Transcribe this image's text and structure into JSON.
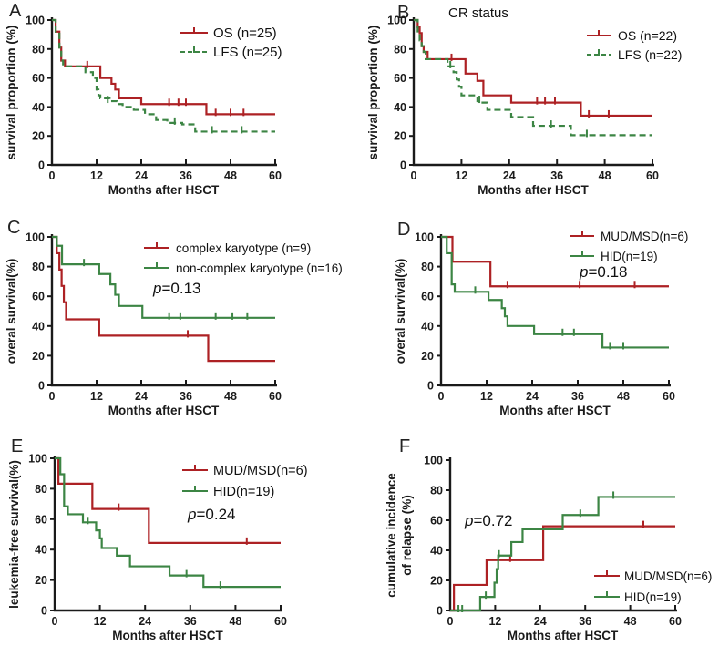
{
  "figure_title": "",
  "style": {
    "axis_color": "#1a1a1a",
    "os_red": "#ad2124",
    "lfs_green": "#3c8544",
    "text_color": "#1a1a1a"
  },
  "chart_data": [
    {
      "panel": "A",
      "type": "line",
      "subtype": "kaplan-meier-step",
      "title": "",
      "xlabel": "Months after HSCT",
      "ylabel": "survival proportion (%)",
      "xlim": [
        0,
        60
      ],
      "ylim": [
        0,
        100
      ],
      "xticks": [
        0,
        12,
        24,
        36,
        48,
        60
      ],
      "yticks": [
        0,
        20,
        40,
        60,
        80,
        100
      ],
      "grid": false,
      "legend_position": "top-right",
      "p_value": null,
      "series": [
        {
          "name": "OS (n=25)",
          "color": "#ad2124",
          "style": "solid",
          "steps": [
            [
              0,
              100
            ],
            [
              1,
              92
            ],
            [
              2,
              81
            ],
            [
              2.5,
              72
            ],
            [
              3.5,
              68
            ],
            [
              13,
              60
            ],
            [
              16,
              56
            ],
            [
              17,
              52
            ],
            [
              18,
              46
            ],
            [
              24,
              42
            ],
            [
              41.5,
              35
            ]
          ],
          "censors": [
            [
              9.5,
              68
            ],
            [
              31.5,
              42
            ],
            [
              34,
              42
            ],
            [
              36,
              42
            ],
            [
              44,
              35
            ],
            [
              48,
              35
            ],
            [
              51.5,
              35
            ]
          ]
        },
        {
          "name": "LFS (n=25)",
          "color": "#3c8544",
          "style": "dashed",
          "steps": [
            [
              0,
              100
            ],
            [
              1,
              92
            ],
            [
              2,
              81
            ],
            [
              2.5,
              72
            ],
            [
              3,
              68
            ],
            [
              9,
              64
            ],
            [
              11,
              60
            ],
            [
              12,
              52
            ],
            [
              12.5,
              48
            ],
            [
              13,
              46
            ],
            [
              15.5,
              44
            ],
            [
              17.5,
              42
            ],
            [
              19,
              40
            ],
            [
              22,
              38
            ],
            [
              25,
              35
            ],
            [
              28,
              31
            ],
            [
              31,
              29
            ],
            [
              35,
              28
            ],
            [
              38.5,
              23
            ]
          ],
          "censors": [
            [
              15,
              44
            ],
            [
              33,
              29
            ],
            [
              43,
              23
            ],
            [
              51,
              23
            ]
          ]
        }
      ]
    },
    {
      "panel": "B",
      "type": "line",
      "subtype": "kaplan-meier-step",
      "title": "CR status",
      "xlabel": "Months after HSCT",
      "ylabel": "survival proportion (%)",
      "xlim": [
        0,
        60
      ],
      "ylim": [
        0,
        100
      ],
      "xticks": [
        0,
        12,
        24,
        36,
        48,
        60
      ],
      "yticks": [
        0,
        20,
        40,
        60,
        80,
        100
      ],
      "grid": false,
      "legend_position": "top-right",
      "p_value": null,
      "series": [
        {
          "name": "OS (n=22)",
          "color": "#ad2124",
          "style": "solid",
          "steps": [
            [
              0,
              100
            ],
            [
              1,
              95
            ],
            [
              1.5,
              91
            ],
            [
              2,
              82
            ],
            [
              2.5,
              78
            ],
            [
              3.5,
              73
            ],
            [
              13,
              63
            ],
            [
              16,
              58
            ],
            [
              17.5,
              48
            ],
            [
              24.5,
              43
            ],
            [
              42,
              34
            ]
          ],
          "censors": [
            [
              9.5,
              73
            ],
            [
              31,
              43
            ],
            [
              33,
              43
            ],
            [
              35.5,
              43
            ],
            [
              44,
              34
            ],
            [
              49,
              34
            ]
          ]
        },
        {
          "name": "LFS (n=22)",
          "color": "#3c8544",
          "style": "dashed",
          "steps": [
            [
              0,
              100
            ],
            [
              1,
              91
            ],
            [
              1.5,
              86
            ],
            [
              2,
              82
            ],
            [
              2.5,
              78
            ],
            [
              3,
              73
            ],
            [
              8.5,
              68
            ],
            [
              10,
              64
            ],
            [
              10.8,
              59
            ],
            [
              11.4,
              54
            ],
            [
              12,
              48
            ],
            [
              16,
              44
            ],
            [
              17,
              43
            ],
            [
              18.5,
              38
            ],
            [
              24.5,
              33
            ],
            [
              30,
              27
            ],
            [
              39.5,
              20.5
            ]
          ],
          "censors": [
            [
              9.2,
              68
            ],
            [
              16.5,
              44
            ],
            [
              34.5,
              27
            ],
            [
              43.5,
              20.5
            ]
          ]
        }
      ]
    },
    {
      "panel": "C",
      "type": "line",
      "subtype": "kaplan-meier-step",
      "title": "",
      "xlabel": "Months after HSCT",
      "ylabel": "overal survival(%)",
      "xlim": [
        0,
        60
      ],
      "ylim": [
        0,
        100
      ],
      "xticks": [
        0,
        12,
        24,
        36,
        48,
        60
      ],
      "yticks": [
        0,
        20,
        40,
        60,
        80,
        100
      ],
      "grid": false,
      "legend_position": "top-right",
      "p_value": "p=0.13",
      "series": [
        {
          "name": "complex karyotype (n=9)",
          "color": "#ad2124",
          "style": "solid",
          "steps": [
            [
              0,
              100
            ],
            [
              1.3,
              89
            ],
            [
              2,
              78
            ],
            [
              2.6,
              67
            ],
            [
              3.2,
              56
            ],
            [
              3.8,
              44.5
            ],
            [
              12.7,
              33.5
            ],
            [
              42,
              16.5
            ]
          ],
          "censors": [
            [
              36.5,
              33.5
            ]
          ]
        },
        {
          "name": "non-complex karyotype (n=16)",
          "color": "#3c8544",
          "style": "solid",
          "steps": [
            [
              0,
              100
            ],
            [
              1.3,
              94
            ],
            [
              2.7,
              81.5
            ],
            [
              12.7,
              75
            ],
            [
              15.7,
              68
            ],
            [
              17,
              61
            ],
            [
              18,
              53.5
            ],
            [
              24.3,
              45.5
            ]
          ],
          "censors": [
            [
              8.6,
              81.5
            ],
            [
              31.5,
              45.5
            ],
            [
              34.5,
              45.5
            ],
            [
              44,
              45.5
            ],
            [
              48.5,
              45.5
            ],
            [
              52.5,
              45.5
            ]
          ]
        }
      ]
    },
    {
      "panel": "D",
      "type": "line",
      "subtype": "kaplan-meier-step",
      "title": "",
      "xlabel": "Months after HSCT",
      "ylabel": "overal survival(%)",
      "xlim": [
        0,
        60
      ],
      "ylim": [
        0,
        100
      ],
      "xticks": [
        0,
        12,
        24,
        36,
        48,
        60
      ],
      "yticks": [
        0,
        20,
        40,
        60,
        80,
        100
      ],
      "grid": false,
      "legend_position": "top-right",
      "p_value": "p=0.18",
      "series": [
        {
          "name": "MUD/MSD(n=6)",
          "color": "#ad2124",
          "style": "solid",
          "steps": [
            [
              0,
              100
            ],
            [
              3,
              83.3
            ],
            [
              13,
              66.7
            ]
          ],
          "censors": [
            [
              17.5,
              66.7
            ],
            [
              36.5,
              66.7
            ],
            [
              51,
              66.7
            ]
          ]
        },
        {
          "name": "HID(n=19)",
          "color": "#3c8544",
          "style": "solid",
          "steps": [
            [
              0,
              100
            ],
            [
              1.5,
              89
            ],
            [
              2.8,
              68
            ],
            [
              3.6,
              63
            ],
            [
              12.5,
              57.5
            ],
            [
              16,
              52
            ],
            [
              16.8,
              46.5
            ],
            [
              17.5,
              40
            ],
            [
              24.5,
              34.5
            ],
            [
              42.5,
              25.5
            ]
          ],
          "censors": [
            [
              9,
              63
            ],
            [
              32,
              34.5
            ],
            [
              35,
              34.5
            ],
            [
              44.5,
              25.5
            ],
            [
              48,
              25.5
            ]
          ]
        }
      ]
    },
    {
      "panel": "E",
      "type": "line",
      "subtype": "kaplan-meier-step",
      "title": "",
      "xlabel": "Months after HSCT",
      "ylabel": "leukemia-free survival(%)",
      "xlim": [
        0,
        60
      ],
      "ylim": [
        0,
        100
      ],
      "xticks": [
        0,
        12,
        24,
        36,
        48,
        60
      ],
      "yticks": [
        0,
        20,
        40,
        60,
        80,
        100
      ],
      "grid": false,
      "legend_position": "top-right",
      "p_value": "p=0.24",
      "series": [
        {
          "name": "MUD/MSD(n=6)",
          "color": "#ad2124",
          "style": "solid",
          "steps": [
            [
              0,
              100
            ],
            [
              1,
              83.3
            ],
            [
              10,
              66.7
            ],
            [
              25,
              44.4
            ]
          ],
          "censors": [
            [
              17,
              66.7
            ],
            [
              51,
              44.4
            ]
          ]
        },
        {
          "name": "HID(n=19)",
          "color": "#3c8544",
          "style": "solid",
          "steps": [
            [
              0,
              100
            ],
            [
              1.5,
              89.5
            ],
            [
              2.5,
              68.4
            ],
            [
              3.5,
              63.2
            ],
            [
              7.5,
              57.9
            ],
            [
              11,
              52.6
            ],
            [
              12,
              47.4
            ],
            [
              12.5,
              41
            ],
            [
              16.5,
              36
            ],
            [
              20,
              29
            ],
            [
              30.5,
              23
            ],
            [
              39.5,
              15.5
            ]
          ],
          "censors": [
            [
              8.8,
              57.9
            ],
            [
              35,
              23
            ],
            [
              44,
              15.5
            ]
          ]
        }
      ]
    },
    {
      "panel": "F",
      "type": "line",
      "subtype": "cumulative-incidence-step",
      "title": "",
      "xlabel": "Months after HSCT",
      "ylabel": "cumulative incidence of relapse (%)",
      "ylabel_lines": [
        "cumulative incidence",
        "of relapse (%)"
      ],
      "xlim": [
        0,
        60
      ],
      "ylim": [
        0,
        100
      ],
      "xticks": [
        0,
        12,
        24,
        36,
        48,
        60
      ],
      "yticks": [
        0,
        20,
        40,
        60,
        80,
        100
      ],
      "grid": false,
      "legend_position": "bottom-right",
      "p_value": "p=0.72",
      "series": [
        {
          "name": "MUD/MSD(n=6)",
          "color": "#ad2124",
          "style": "solid",
          "steps": [
            [
              0,
              0
            ],
            [
              1,
              17
            ],
            [
              9.7,
              33.5
            ],
            [
              24.8,
              56
            ]
          ],
          "censors": [
            [
              16,
              33.5
            ],
            [
              51.5,
              56
            ]
          ]
        },
        {
          "name": "HID(n=19)",
          "color": "#3c8544",
          "style": "solid",
          "steps": [
            [
              0,
              0
            ],
            [
              8,
              9
            ],
            [
              11.8,
              18.5
            ],
            [
              12.4,
              27.5
            ],
            [
              12.8,
              36.5
            ],
            [
              16.3,
              45.5
            ],
            [
              19.3,
              54
            ],
            [
              30,
              63.5
            ],
            [
              39.5,
              75.5
            ]
          ],
          "censors": [
            [
              2.2,
              0
            ],
            [
              3.2,
              0
            ],
            [
              9.5,
              9
            ],
            [
              13,
              36.5
            ],
            [
              34.7,
              63.5
            ],
            [
              43.5,
              75.5
            ]
          ]
        }
      ]
    }
  ]
}
